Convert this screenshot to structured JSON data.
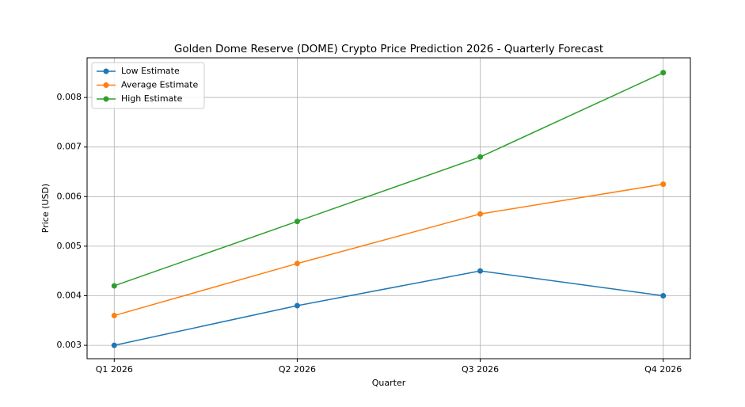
{
  "chart_data": {
    "type": "line",
    "title": "Golden Dome Reserve (DOME) Crypto Price Prediction 2026 - Quarterly Forecast",
    "x_label": "Quarter",
    "y_label": "Price (USD)",
    "categories": [
      "Q1 2026",
      "Q2 2026",
      "Q3 2026",
      "Q4 2026"
    ],
    "series": [
      {
        "name": "Low Estimate",
        "color": "#1f77b4",
        "values": [
          0.003,
          0.0038,
          0.0045,
          0.004
        ]
      },
      {
        "name": "Average Estimate",
        "color": "#ff7f0e",
        "values": [
          0.0036,
          0.00465,
          0.00565,
          0.00625
        ]
      },
      {
        "name": "High Estimate",
        "color": "#2ca02c",
        "values": [
          0.0042,
          0.0055,
          0.0068,
          0.0085
        ]
      }
    ],
    "ylim": [
      0.00273,
      0.0088
    ],
    "yticks": [
      0.003,
      0.004,
      0.005,
      0.006,
      0.007,
      0.008
    ],
    "grid": true,
    "legend": "upper-left"
  }
}
